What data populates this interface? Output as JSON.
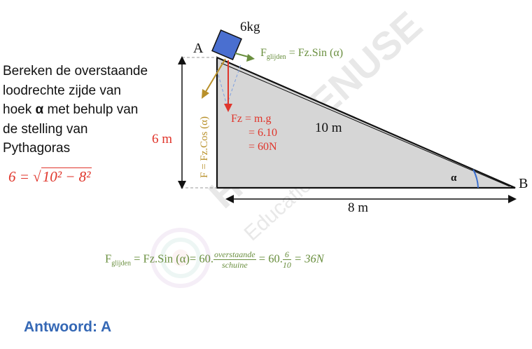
{
  "question": {
    "line1": "Bereken de overstaande",
    "line2": "loodrechte zijde van",
    "line3_pre": "hoek",
    "alpha": "α",
    "line3_post": "met behulp van",
    "line4": "de stelling van",
    "line5": "Pythagoras"
  },
  "equation": {
    "lhs": "6 = ",
    "radicand": "10² − 8²"
  },
  "diagram": {
    "mass": "6kg",
    "vertex_a": "A",
    "vertex_b": "B",
    "height_label": "6 m",
    "hyp_label": "10 m",
    "base_label": "8 m",
    "angle_label": "α",
    "fz_line1": "Fz = m.g",
    "fz_line2": "= 6.10",
    "fz_line3": "= 60N",
    "f_perp": "F = Fz.Cos (α)",
    "f_slide_main": "F",
    "f_slide_sub": "glijden",
    "f_slide_rest": " = Fz.Sin (α)",
    "colors": {
      "red": "#e0352b",
      "green": "#6a8f3f",
      "gold": "#b8902a",
      "block": "#4a6fd0",
      "triangle": "#d6d6d6",
      "angle": "#3a6fd0"
    }
  },
  "formula": {
    "f": "F",
    "sub": "glijden",
    "part1": " = Fz.Sin (α)= 60.",
    "num1": "overstaande",
    "den1": "schuine",
    "part2": " = 60.",
    "num2": "6",
    "den2": "10",
    "part3": " = 36N"
  },
  "answer": "Antwoord: A",
  "watermark": {
    "brand": "HYPOTENUSE",
    "tagline": "Education Center"
  }
}
